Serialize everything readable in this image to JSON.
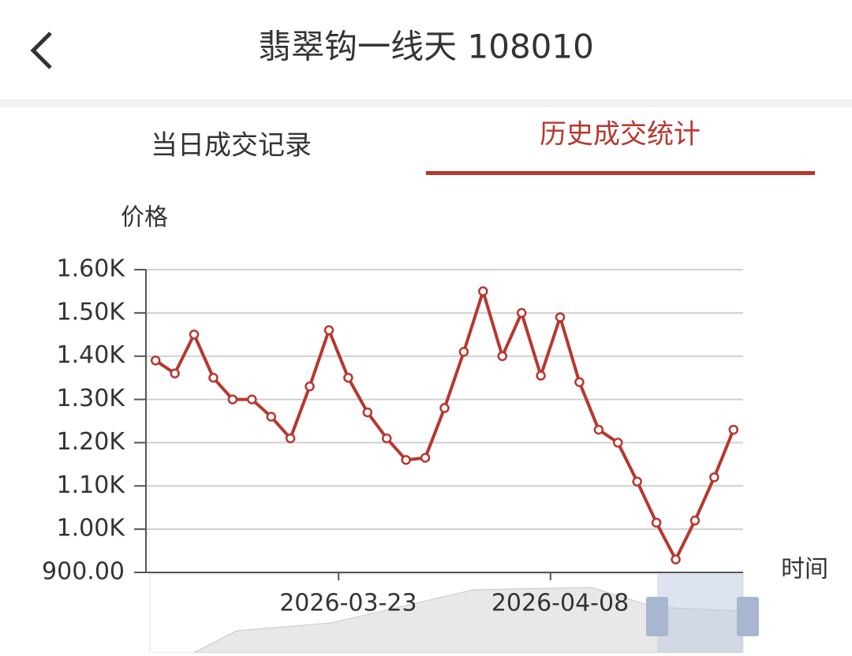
{
  "header": {
    "title": "翡翠钩一线天 108010"
  },
  "tabs": [
    "当日成交记录",
    "历史成交统计"
  ],
  "chart_data": {
    "type": "line",
    "y_axis_name": "价格",
    "x_axis_name": "时间",
    "categories": [
      null,
      null,
      null,
      null,
      null,
      null,
      null,
      null,
      null,
      null,
      "2026-03-23",
      null,
      null,
      null,
      null,
      null,
      null,
      null,
      null,
      null,
      null,
      "2026-04-08",
      null,
      null,
      null,
      null,
      null,
      null,
      null,
      null,
      null
    ],
    "values": [
      1390,
      1360,
      1450,
      1350,
      1300,
      1300,
      1260,
      1210,
      1330,
      1460,
      1350,
      1270,
      1210,
      1160,
      1165,
      1280,
      1410,
      1550,
      1400,
      1500,
      1355,
      1490,
      1340,
      1230,
      1200,
      1110,
      1015,
      930,
      1020,
      1120,
      1230
    ],
    "color": "#b7372f",
    "ylim": [
      900,
      1600
    ],
    "yticks": [
      {
        "value": 900,
        "label": "900.00"
      },
      {
        "value": 1000,
        "label": "1.00K"
      },
      {
        "value": 1100,
        "label": "1.10K"
      },
      {
        "value": 1200,
        "label": "1.20K"
      },
      {
        "value": 1300,
        "label": "1.30K"
      },
      {
        "value": 1400,
        "label": "1.40K"
      },
      {
        "value": 1500,
        "label": "1.50K"
      },
      {
        "value": 1600,
        "label": "1.60K"
      }
    ],
    "grid": true
  }
}
